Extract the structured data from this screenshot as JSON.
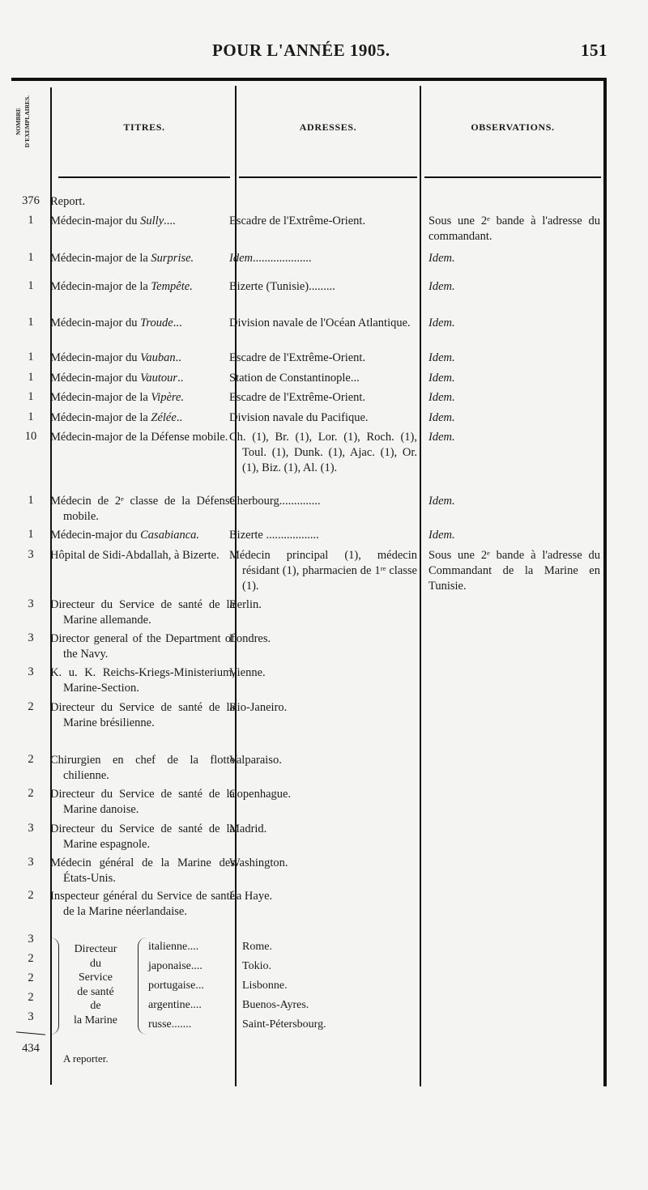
{
  "page_header": {
    "title": "POUR L'ANNÉE 1905.",
    "page_number": "151"
  },
  "columns": {
    "count": "NOMBRE D'EXEMPLAIRES.",
    "titles": "TITRES.",
    "addresses": "ADRESSES.",
    "observations": "OBSERVATIONS."
  },
  "rows": [
    {
      "n": "376",
      "title": "Report.",
      "addr": "",
      "obs": ""
    },
    {
      "n": "1",
      "title": "Médecin-major du *Sully*....",
      "addr": "Escadre de l'Extrême-Orient.",
      "obs": "Sous une 2ᵉ bande à l'adresse du commandant."
    },
    {
      "n": "1",
      "title": "Médecin-major de la *Surprise.*",
      "addr": "*Idem*....................",
      "obs": "*Idem.*"
    },
    {
      "n": "1",
      "title": "Médecin-major de la *Tempête.*",
      "addr": "Bizerte (Tunisie).........",
      "obs": "*Idem.*"
    },
    {
      "n": "1",
      "title": "Médecin-major du *Troude*...",
      "addr": "Division navale de l'Océan Atlantique.",
      "obs": "*Idem.*"
    },
    {
      "n": "1",
      "title": "Médecin-major du *Vauban*..",
      "addr": "Escadre de l'Extrême-Orient.",
      "obs": "*Idem.*"
    },
    {
      "n": "1",
      "title": "Médecin-major du *Vautour*..",
      "addr": "Station de Constantinople...",
      "obs": "*Idem.*"
    },
    {
      "n": "1",
      "title": "Médecin-major de la *Vipère.*",
      "addr": "Escadre de l'Extrême-Orient.",
      "obs": "*Idem.*"
    },
    {
      "n": "1",
      "title": "Médecin-major de la *Zélée*..",
      "addr": "Division navale du Pacifique.",
      "obs": "*Idem.*"
    },
    {
      "n": "10",
      "title": "Médecin-major de la Défense mobile.",
      "addr": "Ch. (1), Br. (1), Lor. (1), Roch. (1), Toul. (1), Dunk. (1), Ajac. (1), Or. (1), Biz. (1), Al. (1).",
      "obs": "*Idem.*"
    },
    {
      "n": "1",
      "title": "Médecin de 2ᵉ classe de la Défense mobile.",
      "addr": "Cherbourg..............",
      "obs": "*Idem.*"
    },
    {
      "n": "1",
      "title": "Médecin-major du *Casabianca.*",
      "addr": "Bizerte ..................",
      "obs": "*Idem.*"
    },
    {
      "n": "3",
      "title": "Hôpital de Sidi-Abdallah, à Bizerte.",
      "addr": "Médecin principal (1), médecin résidant (1), pharmacien de 1ʳᵉ classe (1).",
      "obs": "Sous une 2ᵉ bande à l'adresse du Commandant de la Marine en Tunisie."
    },
    {
      "n": "3",
      "title": "Directeur du Service de santé de la Marine allemande.",
      "addr": "Berlin.",
      "obs": ""
    },
    {
      "n": "3",
      "title": "Director general of the Department of the Navy.",
      "addr": "Londres.",
      "obs": ""
    },
    {
      "n": "3",
      "title": "K. u. K. Reichs-Kriegs-Ministerium, Marine-Section.",
      "addr": "Vienne.",
      "obs": ""
    },
    {
      "n": "2",
      "title": "Directeur du Service de santé de la Marine brésilienne.",
      "addr": "Rio-Janeiro.",
      "obs": ""
    },
    {
      "n": "2",
      "title": "Chirurgien en chef de la flotte chilienne.",
      "addr": "Valparaiso.",
      "obs": ""
    },
    {
      "n": "2",
      "title": "Directeur du Service de santé de la Marine danoise.",
      "addr": "Copenhague.",
      "obs": ""
    },
    {
      "n": "3",
      "title": "Directeur du Service de santé de la Marine espagnole.",
      "addr": "Madrid.",
      "obs": ""
    },
    {
      "n": "3",
      "title": "Médecin général de la Marine des États-Unis.",
      "addr": "Washington.",
      "obs": ""
    },
    {
      "n": "2",
      "title": "Inspecteur général du Service de santé de la Marine néerlandaise.",
      "addr": "La Haye.",
      "obs": ""
    }
  ],
  "group": {
    "label_lines": [
      "Directeur",
      "du",
      "Service",
      "de santé",
      "de",
      "la Marine"
    ],
    "items": [
      {
        "n": "3",
        "nation": "italienne....",
        "addr": "Rome."
      },
      {
        "n": "2",
        "nation": "japonaise....",
        "addr": "Tokio."
      },
      {
        "n": "2",
        "nation": "portugaise...",
        "addr": "Lisbonne."
      },
      {
        "n": "2",
        "nation": "argentine....",
        "addr": "Buenos-Ayres."
      },
      {
        "n": "3",
        "nation": "russe.......",
        "addr": "Saint-Pétersbourg."
      }
    ]
  },
  "footer": {
    "total": "434",
    "label": "A reporter."
  }
}
